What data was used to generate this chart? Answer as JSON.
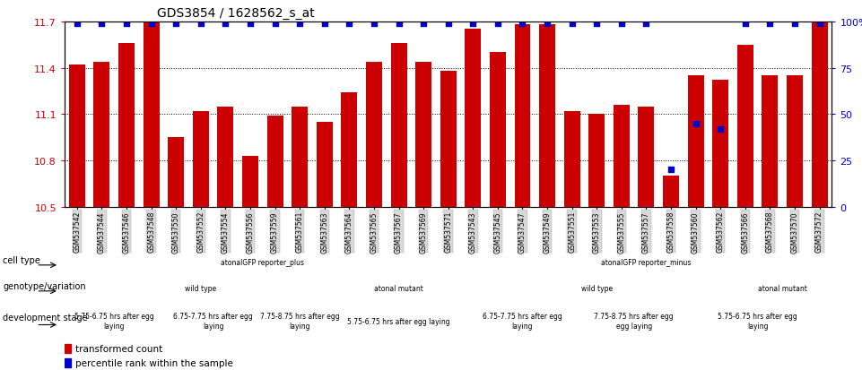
{
  "title": "GDS3854 / 1628562_s_at",
  "samples": [
    "GSM537542",
    "GSM537544",
    "GSM537546",
    "GSM537548",
    "GSM537550",
    "GSM537552",
    "GSM537554",
    "GSM537556",
    "GSM537559",
    "GSM537561",
    "GSM537563",
    "GSM537564",
    "GSM537565",
    "GSM537567",
    "GSM537569",
    "GSM537571",
    "GSM537543",
    "GSM537545",
    "GSM537547",
    "GSM537549",
    "GSM537551",
    "GSM537553",
    "GSM537555",
    "GSM537557",
    "GSM537558",
    "GSM537560",
    "GSM537562",
    "GSM537566",
    "GSM537568",
    "GSM537570",
    "GSM537572"
  ],
  "bar_values": [
    11.42,
    11.44,
    11.56,
    11.7,
    10.95,
    11.12,
    11.15,
    10.83,
    11.09,
    11.15,
    11.05,
    11.24,
    11.44,
    11.56,
    11.44,
    11.38,
    11.65,
    11.5,
    11.68,
    11.68,
    11.12,
    11.1,
    11.16,
    11.15,
    10.7,
    11.35,
    11.32,
    11.55,
    11.35,
    11.35,
    11.7
  ],
  "percentile_values": [
    99,
    99,
    99,
    99,
    99,
    99,
    99,
    99,
    99,
    99,
    99,
    99,
    99,
    99,
    99,
    99,
    99,
    99,
    99,
    99,
    99,
    99,
    99,
    99,
    20,
    45,
    42,
    99,
    99,
    99,
    99
  ],
  "ylim_left": [
    10.5,
    11.7
  ],
  "ylim_right": [
    0,
    100
  ],
  "yticks_left": [
    10.5,
    10.8,
    11.1,
    11.4,
    11.7
  ],
  "yticks_right": [
    0,
    25,
    50,
    75,
    100
  ],
  "bar_color": "#cc0000",
  "percentile_color": "#0000cc",
  "cell_type_rows": [
    {
      "label": "atonalGFP reporter_plus",
      "start": 0,
      "end": 16,
      "color": "#99ee99"
    },
    {
      "label": "atonalGFP reporter_minus",
      "start": 16,
      "end": 31,
      "color": "#99ee99"
    }
  ],
  "genotype_rows": [
    {
      "label": "wild type",
      "start": 0,
      "end": 11,
      "color": "#aaaadd"
    },
    {
      "label": "atonal mutant",
      "start": 11,
      "end": 16,
      "color": "#8888cc"
    },
    {
      "label": "wild type",
      "start": 16,
      "end": 27,
      "color": "#aaaadd"
    },
    {
      "label": "atonal mutant",
      "start": 27,
      "end": 31,
      "color": "#8888cc"
    }
  ],
  "dev_stage_rows": [
    {
      "label": "5.75-6.75 hrs after egg\nlaying",
      "start": 0,
      "end": 4,
      "color": "#ffcccc"
    },
    {
      "label": "6.75-7.75 hrs after egg\nlaying",
      "start": 4,
      "end": 8,
      "color": "#ffbbaa"
    },
    {
      "label": "7.75-8.75 hrs after egg\nlaying",
      "start": 8,
      "end": 11,
      "color": "#ffaa99"
    },
    {
      "label": "5.75-6.75 hrs after egg laying",
      "start": 11,
      "end": 16,
      "color": "#ffcccc"
    },
    {
      "label": "6.75-7.75 hrs after egg\nlaying",
      "start": 16,
      "end": 21,
      "color": "#ffbbaa"
    },
    {
      "label": "7.75-8.75 hrs after egg\negg laying",
      "start": 21,
      "end": 25,
      "color": "#ffaa99"
    },
    {
      "label": "5.75-6.75 hrs after egg\nlaying",
      "start": 25,
      "end": 31,
      "color": "#ffcccc"
    }
  ],
  "row_labels": [
    "cell type",
    "genotype/variation",
    "development stage"
  ]
}
